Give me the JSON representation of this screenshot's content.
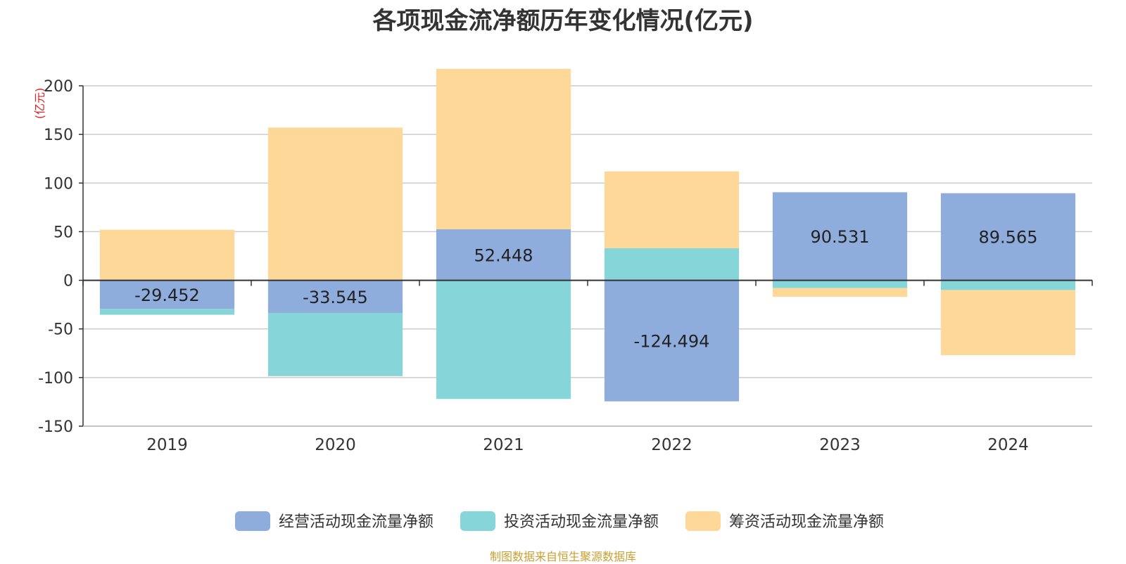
{
  "chart_data": {
    "type": "bar",
    "stacked": true,
    "title": "各项现金流净额历年变化情况(亿元)",
    "ylabel": "(亿元)",
    "categories": [
      "2019",
      "2020",
      "2021",
      "2022",
      "2023",
      "2024"
    ],
    "ylim": [
      -150,
      200
    ],
    "yticks": [
      200,
      150,
      100,
      50,
      0,
      -50,
      -100,
      -150
    ],
    "grid": true,
    "legend_position": "bottom",
    "series": [
      {
        "name": "经营活动现金流量净额",
        "color": "#8eacdc",
        "values": [
          -29.452,
          -33.545,
          52.448,
          -124.494,
          90.531,
          89.565
        ],
        "labels": [
          "-29.452",
          "-33.545",
          "52.448",
          "-124.494",
          "90.531",
          "89.565"
        ]
      },
      {
        "name": "投资活动现金流量净额",
        "color": "#86d5d8",
        "values": [
          -6.0,
          -65.0,
          -122.0,
          33.0,
          -8.0,
          -10.0
        ]
      },
      {
        "name": "筹资活动现金流量净额",
        "color": "#fed898",
        "values": [
          52.0,
          157.0,
          165.0,
          79.0,
          -9.0,
          -67.0
        ]
      }
    ]
  },
  "source": "制图数据来自恒生聚源数据库"
}
